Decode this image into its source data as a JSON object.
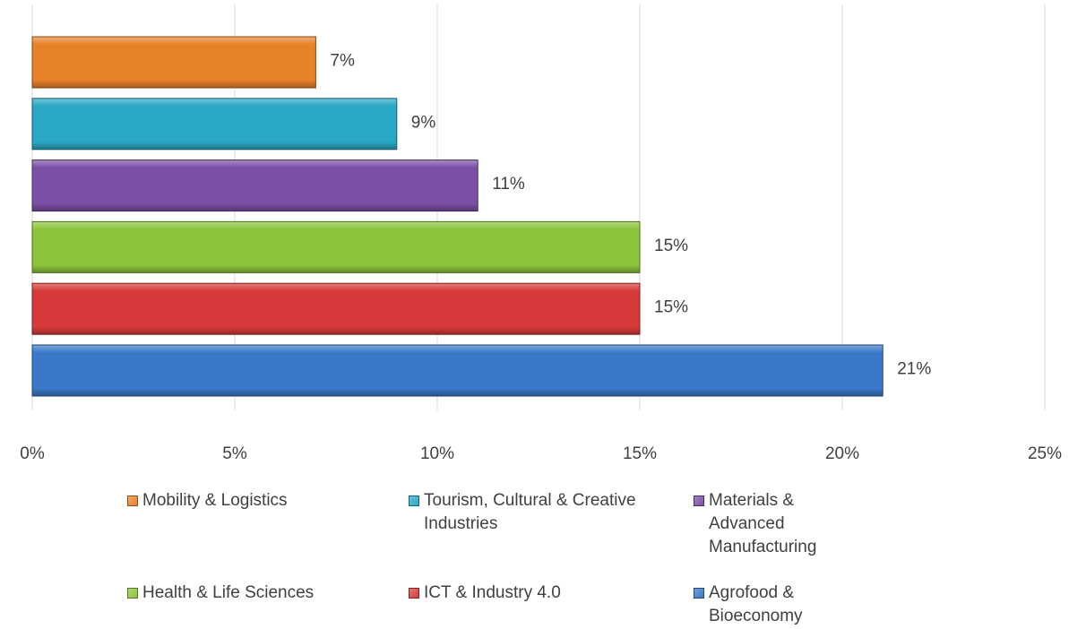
{
  "chart_data": {
    "type": "bar",
    "orientation": "horizontal",
    "categories": [
      null
    ],
    "series": [
      {
        "name": "Mobility & Logistics",
        "color": "#e8822a",
        "values": [
          7
        ],
        "value_labels": [
          "7%"
        ]
      },
      {
        "name": "Tourism, Cultural & Creative Industries",
        "color": "#2aa7c4",
        "values": [
          9
        ],
        "value_labels": [
          "9%"
        ]
      },
      {
        "name": "Materials & Advanced Manufacturing",
        "color": "#7b4fa6",
        "values": [
          11
        ],
        "value_labels": [
          "11%"
        ]
      },
      {
        "name": "Health & Life Sciences",
        "color": "#8cc43c",
        "values": [
          15
        ],
        "value_labels": [
          "15%"
        ]
      },
      {
        "name": "ICT & Industry 4.0",
        "color": "#d63a3a",
        "values": [
          15
        ],
        "value_labels": [
          "15%"
        ]
      },
      {
        "name": "Agrofood & Bioeconomy",
        "color": "#3a78c8",
        "values": [
          21
        ],
        "value_labels": [
          "21%"
        ]
      }
    ],
    "xlim": [
      0,
      25
    ],
    "xticks": [
      {
        "value": 0,
        "label": "0%"
      },
      {
        "value": 5,
        "label": "5%"
      },
      {
        "value": 10,
        "label": "10%"
      },
      {
        "value": 15,
        "label": "15%"
      },
      {
        "value": 20,
        "label": "20%"
      },
      {
        "value": 25,
        "label": "25%"
      }
    ],
    "grid": true,
    "legend": "bottom"
  }
}
